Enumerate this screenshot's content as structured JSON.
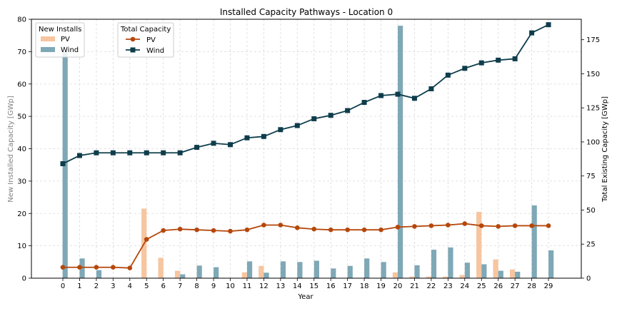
{
  "chart_data": {
    "type": "bar+line",
    "title": "Installed Capacity Pathways - Location 0",
    "xlabel": "Year",
    "ylabel_left": "New Installed Capacity [GWp]",
    "ylabel_right": "Total Existing Capacity [GWp]",
    "ylim_left": [
      0,
      80
    ],
    "ylim_right": [
      0,
      190
    ],
    "left_ticks": [
      0,
      10,
      20,
      30,
      40,
      50,
      60,
      70,
      80
    ],
    "right_ticks": [
      0,
      25,
      50,
      75,
      100,
      125,
      150,
      175
    ],
    "grid": true,
    "categories": [
      "0",
      "1",
      "2",
      "3",
      "4",
      "5",
      "6",
      "7",
      "8",
      "9",
      "10",
      "11",
      "12",
      "13",
      "14",
      "15",
      "16",
      "17",
      "18",
      "19",
      "20",
      "21",
      "22",
      "23",
      "24",
      "25",
      "26",
      "27",
      "28",
      "29"
    ],
    "new_installs": {
      "legend_title": "New Installs",
      "series": [
        {
          "name": "PV",
          "color": "#f7c59f",
          "values": [
            0,
            0,
            0,
            0,
            0,
            21.5,
            6.3,
            2.3,
            0,
            0,
            0,
            1.8,
            3.8,
            0,
            0,
            0,
            0,
            0,
            0,
            0,
            1.8,
            0.5,
            0.5,
            0.5,
            1.0,
            20.5,
            5.8,
            2.7,
            0,
            0
          ]
        },
        {
          "name": "Wind",
          "color": "#7fa8b6",
          "values": [
            70,
            6.1,
            2.5,
            0,
            0,
            0,
            0,
            1.2,
            3.9,
            3.4,
            0,
            5.2,
            1.7,
            5.2,
            5.0,
            5.4,
            3.0,
            3.8,
            6.1,
            5.0,
            78,
            4.0,
            8.8,
            9.5,
            4.8,
            4.3,
            2.3,
            2.0,
            22.5,
            8.6
          ]
        }
      ]
    },
    "total_capacity": {
      "legend_title": "Total Capacity",
      "series": [
        {
          "name": "PV",
          "color": "#b5470b",
          "marker": "circle",
          "values": [
            8,
            8,
            8,
            8,
            7.5,
            28.5,
            35,
            36,
            35.5,
            35,
            34.5,
            35.5,
            39,
            39,
            37,
            36,
            35.5,
            35.5,
            35.5,
            35.5,
            37.5,
            38,
            38.5,
            39,
            40,
            38.5,
            38,
            38.5,
            38.5,
            38.5
          ]
        },
        {
          "name": "Wind",
          "color": "#0e3d4b",
          "marker": "square",
          "values": [
            84,
            90,
            92,
            92,
            92,
            92,
            92,
            92,
            96,
            99,
            98,
            103,
            104,
            109,
            112,
            117,
            119.5,
            123,
            129,
            134,
            135,
            132,
            139,
            149,
            154,
            158,
            160,
            161,
            180,
            186
          ]
        }
      ]
    }
  }
}
